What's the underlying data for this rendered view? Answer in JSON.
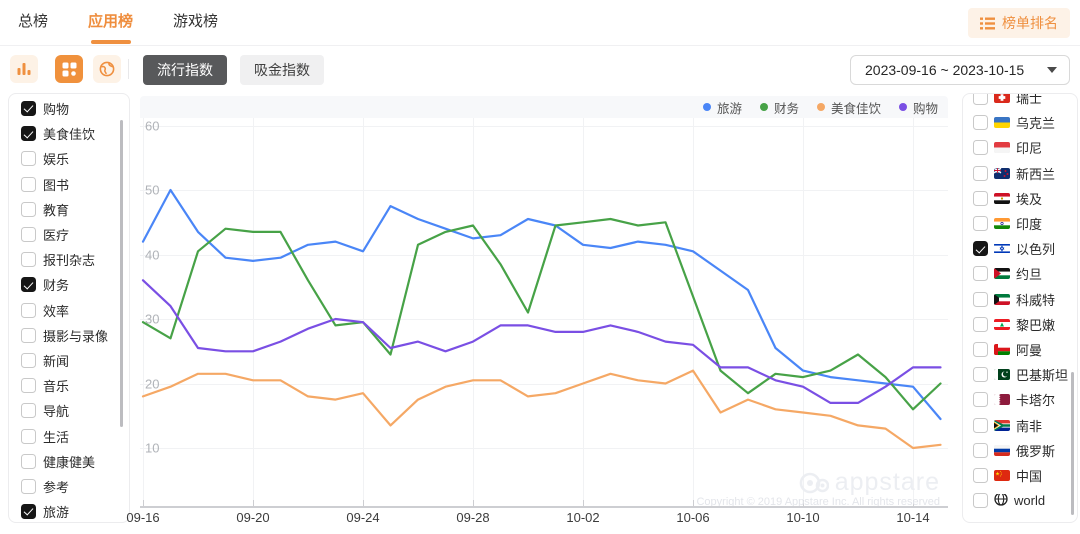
{
  "tabs": [
    {
      "label": "总榜",
      "active": false
    },
    {
      "label": "应用榜",
      "active": true
    },
    {
      "label": "游戏榜",
      "active": false
    }
  ],
  "rank_button": {
    "label": "榜单排名"
  },
  "toolbar": {
    "view_icons": [
      {
        "name": "bar-chart-view",
        "active": false
      },
      {
        "name": "grid-view",
        "active": true
      },
      {
        "name": "globe-view",
        "active": false
      }
    ],
    "metric_buttons": [
      {
        "label": "流行指数",
        "active": true
      },
      {
        "label": "吸金指数",
        "active": false
      }
    ],
    "date_range": {
      "value": "2023-09-16 ~ 2023-10-15"
    }
  },
  "left_sidebar": {
    "items": [
      {
        "label": "购物",
        "checked": true
      },
      {
        "label": "美食佳饮",
        "checked": true
      },
      {
        "label": "娱乐",
        "checked": false
      },
      {
        "label": "图书",
        "checked": false
      },
      {
        "label": "教育",
        "checked": false
      },
      {
        "label": "医疗",
        "checked": false
      },
      {
        "label": "报刊杂志",
        "checked": false
      },
      {
        "label": "财务",
        "checked": true
      },
      {
        "label": "效率",
        "checked": false
      },
      {
        "label": "摄影与录像",
        "checked": false
      },
      {
        "label": "新闻",
        "checked": false
      },
      {
        "label": "音乐",
        "checked": false
      },
      {
        "label": "导航",
        "checked": false
      },
      {
        "label": "生活",
        "checked": false
      },
      {
        "label": "健康健美",
        "checked": false
      },
      {
        "label": "参考",
        "checked": false
      },
      {
        "label": "旅游",
        "checked": true
      }
    ]
  },
  "right_sidebar": {
    "items": [
      {
        "label": "瑞士",
        "flag": "ch",
        "checked": false
      },
      {
        "label": "乌克兰",
        "flag": "ua",
        "checked": false
      },
      {
        "label": "印尼",
        "flag": "id",
        "checked": false
      },
      {
        "label": "新西兰",
        "flag": "nz",
        "checked": false
      },
      {
        "label": "埃及",
        "flag": "eg",
        "checked": false
      },
      {
        "label": "印度",
        "flag": "in",
        "checked": false
      },
      {
        "label": "以色列",
        "flag": "il",
        "checked": true
      },
      {
        "label": "约旦",
        "flag": "jo",
        "checked": false
      },
      {
        "label": "科威特",
        "flag": "kw",
        "checked": false
      },
      {
        "label": "黎巴嫩",
        "flag": "lb",
        "checked": false
      },
      {
        "label": "阿曼",
        "flag": "om",
        "checked": false
      },
      {
        "label": "巴基斯坦",
        "flag": "pk",
        "checked": false
      },
      {
        "label": "卡塔尔",
        "flag": "qa",
        "checked": false
      },
      {
        "label": "南非",
        "flag": "za",
        "checked": false
      },
      {
        "label": "俄罗斯",
        "flag": "ru",
        "checked": false
      },
      {
        "label": "中国",
        "flag": "cn",
        "checked": false
      },
      {
        "label": "world",
        "flag": "world",
        "checked": false
      }
    ]
  },
  "watermark": {
    "brand": "appstare",
    "copyright": "Copyright © 2019 Appstare Inc. All rights reserved"
  },
  "chart_data": {
    "type": "line",
    "title": "",
    "xlabel": "",
    "ylabel": "",
    "ylim": [
      5,
      62
    ],
    "yticks": [
      10,
      20,
      30,
      40,
      50,
      60
    ],
    "xtick_labels": [
      "09-16",
      "09-20",
      "09-24",
      "09-28",
      "10-02",
      "10-06",
      "10-10",
      "10-14"
    ],
    "grid": true,
    "legend_position": "top-right",
    "categories": [
      "09-16",
      "09-17",
      "09-18",
      "09-19",
      "09-20",
      "09-21",
      "09-22",
      "09-23",
      "09-24",
      "09-25",
      "09-26",
      "09-27",
      "09-28",
      "09-29",
      "09-30",
      "10-01",
      "10-02",
      "10-03",
      "10-04",
      "10-05",
      "10-06",
      "10-07",
      "10-08",
      "10-09",
      "10-10",
      "10-11",
      "10-12",
      "10-13",
      "10-14",
      "10-15"
    ],
    "series": [
      {
        "name": "旅游",
        "color": "#4a86f7",
        "values": [
          42,
          50,
          43.5,
          39.5,
          39,
          39.5,
          41.5,
          42,
          40.5,
          47.5,
          45.5,
          44,
          42.5,
          43,
          45.5,
          44.5,
          41.5,
          41,
          42,
          41.5,
          40.5,
          37.5,
          34.5,
          25.5,
          22,
          21,
          20.5,
          20,
          19.5,
          14.5
        ]
      },
      {
        "name": "财务",
        "color": "#47a247",
        "values": [
          29.5,
          27,
          40.5,
          44,
          43.5,
          43.5,
          36,
          29,
          29.5,
          24.5,
          41.5,
          43.5,
          44.5,
          38.5,
          31,
          44.5,
          45,
          45.5,
          44.5,
          45,
          33.5,
          22,
          18.5,
          21.5,
          21,
          22,
          24.5,
          21,
          16,
          20
        ]
      },
      {
        "name": "美食佳饮",
        "color": "#f5a865",
        "values": [
          18,
          19.5,
          21.5,
          21.5,
          20.5,
          20.5,
          18,
          17.5,
          18.5,
          13.5,
          17.5,
          19.5,
          20.5,
          20.5,
          18,
          18.5,
          20,
          21.5,
          20.5,
          20,
          22,
          15.5,
          17.5,
          16,
          15.5,
          15,
          13.5,
          13,
          10,
          10.5
        ]
      },
      {
        "name": "购物",
        "color": "#7a4fe4",
        "values": [
          36,
          32,
          25.5,
          25,
          25,
          26.5,
          28.5,
          30,
          29.5,
          25.5,
          26.5,
          25,
          26.5,
          29,
          29,
          28,
          28,
          29,
          28,
          26.5,
          26,
          22.5,
          22.5,
          20.5,
          19.5,
          17,
          17,
          19.5,
          22.5,
          22.5
        ]
      }
    ]
  }
}
